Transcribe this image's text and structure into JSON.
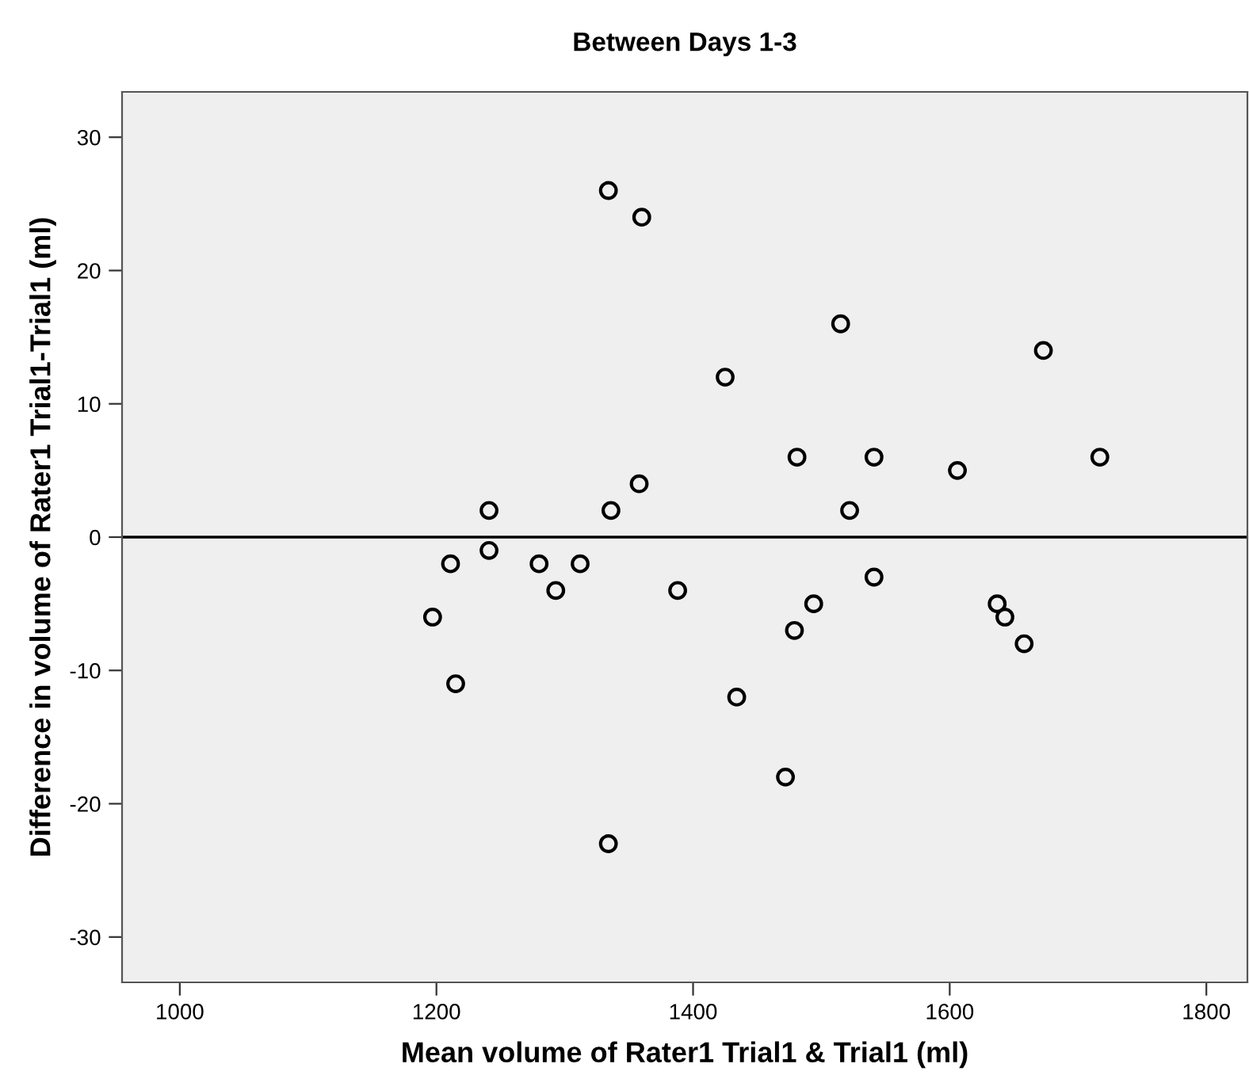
{
  "chart_data": {
    "type": "scatter",
    "title": "Between Days 1-3",
    "xlabel": "Mean volume of Rater1 Trial1 & Trial1 (ml)",
    "ylabel": "Difference in volume of Rater1 Trial1-Trial1 (ml)",
    "x": [
      1197,
      1211,
      1215,
      1241,
      1241,
      1280,
      1293,
      1312,
      1334,
      1334,
      1336,
      1360,
      1358,
      1388,
      1425,
      1434,
      1472,
      1479,
      1481,
      1494,
      1515,
      1522,
      1541,
      1541,
      1606,
      1637,
      1643,
      1658,
      1673,
      1717
    ],
    "values": [
      -6,
      -2,
      -11,
      2,
      -1,
      -2,
      -4,
      -2,
      26,
      -23,
      2,
      24,
      4,
      -4,
      12,
      -12,
      -18,
      -7,
      6,
      -5,
      16,
      2,
      6,
      -3,
      5,
      -5,
      -6,
      -8,
      14,
      6
    ],
    "color": "#000000",
    "marker": "circle",
    "xlim": [
      955,
      1832
    ],
    "ylim": [
      -33.4,
      33.4
    ],
    "xticks": [
      1000,
      1200,
      1400,
      1600,
      1800
    ],
    "yticks": [
      -30,
      -20,
      -10,
      0,
      10,
      20,
      30
    ],
    "ref_lines": [
      {
        "axis": "y",
        "value": 0,
        "color": "#000000"
      }
    ],
    "grid": false
  }
}
